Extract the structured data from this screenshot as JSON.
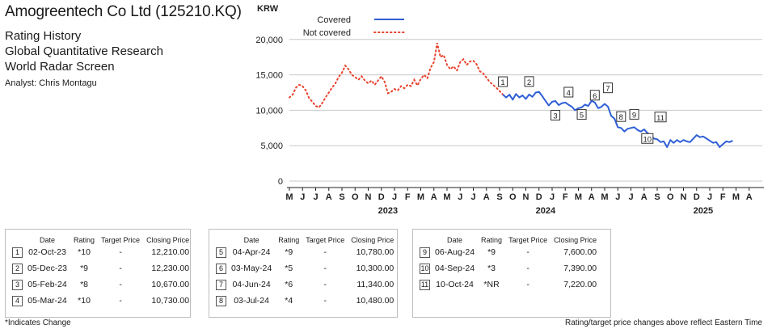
{
  "header": {
    "company": "Amogreentech Co Ltd (125210.KQ)",
    "lines": [
      "Rating History",
      "Global Quantitative Research",
      "World Radar Screen"
    ],
    "analyst": "Analyst: Chris Montagu"
  },
  "chart_data": {
    "type": "line",
    "ylabel": "KRW",
    "ylim": [
      0,
      21000
    ],
    "yticks": [
      0,
      5000,
      10000,
      15000,
      20000
    ],
    "ytick_labels": [
      "0",
      "5,000",
      "10,000",
      "15,000",
      "20,000"
    ],
    "months": [
      "M",
      "J",
      "J",
      "A",
      "S",
      "O",
      "N",
      "D",
      "J",
      "F",
      "M",
      "A",
      "M",
      "J",
      "J",
      "A",
      "S",
      "O",
      "N",
      "D",
      "J",
      "F",
      "M",
      "A",
      "M",
      "J",
      "J",
      "A",
      "S",
      "O",
      "N",
      "D",
      "J",
      "F",
      "M",
      "A"
    ],
    "years": [
      {
        "label": "2023",
        "month_index": 7.5
      },
      {
        "label": "2024",
        "month_index": 19.5
      },
      {
        "label": "2025",
        "month_index": 31.5
      }
    ],
    "grid": "horizontal",
    "legend": {
      "placement": "top-left",
      "covered": "Covered",
      "not_covered": "Not covered",
      "covered_color": "#2f5fd6",
      "not_covered_color": "#e8432e"
    },
    "series": [
      {
        "name": "Not covered",
        "style": "dotted",
        "color": "#e8432e",
        "points": [
          [
            0,
            11800
          ],
          [
            0.25,
            12200
          ],
          [
            0.5,
            13200
          ],
          [
            0.75,
            13600
          ],
          [
            1.0,
            13400
          ],
          [
            1.25,
            12800
          ],
          [
            1.5,
            11700
          ],
          [
            1.75,
            11200
          ],
          [
            2.0,
            10600
          ],
          [
            2.25,
            10400
          ],
          [
            2.5,
            11000
          ],
          [
            2.75,
            11800
          ],
          [
            3.0,
            12500
          ],
          [
            3.25,
            13200
          ],
          [
            3.5,
            13800
          ],
          [
            3.75,
            14700
          ],
          [
            4.0,
            15300
          ],
          [
            4.25,
            16300
          ],
          [
            4.5,
            15800
          ],
          [
            4.75,
            15000
          ],
          [
            5.0,
            14700
          ],
          [
            5.25,
            14300
          ],
          [
            5.5,
            14800
          ],
          [
            5.75,
            14200
          ],
          [
            6.0,
            13800
          ],
          [
            6.25,
            14200
          ],
          [
            6.5,
            13600
          ],
          [
            6.75,
            14200
          ],
          [
            7.0,
            14800
          ],
          [
            7.25,
            14000
          ],
          [
            7.5,
            12400
          ],
          [
            7.75,
            12600
          ],
          [
            8.0,
            13000
          ],
          [
            8.25,
            12800
          ],
          [
            8.5,
            13400
          ],
          [
            8.75,
            13100
          ],
          [
            9.0,
            13600
          ],
          [
            9.25,
            13400
          ],
          [
            9.5,
            14300
          ],
          [
            9.75,
            13500
          ],
          [
            10.0,
            14400
          ],
          [
            10.25,
            15000
          ],
          [
            10.5,
            14500
          ],
          [
            10.75,
            16000
          ],
          [
            11.0,
            16800
          ],
          [
            11.25,
            19500
          ],
          [
            11.5,
            17500
          ],
          [
            11.75,
            17800
          ],
          [
            12.0,
            16400
          ],
          [
            12.25,
            15800
          ],
          [
            12.5,
            16200
          ],
          [
            12.75,
            15600
          ],
          [
            13.0,
            16800
          ],
          [
            13.25,
            17200
          ],
          [
            13.5,
            16400
          ],
          [
            13.75,
            16900
          ],
          [
            14.0,
            17000
          ],
          [
            14.25,
            16500
          ],
          [
            14.5,
            15500
          ],
          [
            14.75,
            15200
          ],
          [
            15.0,
            14600
          ],
          [
            15.25,
            14000
          ],
          [
            15.5,
            13600
          ],
          [
            15.75,
            13200
          ],
          [
            16.0,
            12700
          ],
          [
            16.25,
            12210
          ]
        ]
      },
      {
        "name": "Covered",
        "style": "solid",
        "color": "#2f5fd6",
        "points": [
          [
            16.25,
            12210
          ],
          [
            16.5,
            11800
          ],
          [
            16.75,
            12200
          ],
          [
            17.0,
            11500
          ],
          [
            17.25,
            12300
          ],
          [
            17.5,
            11800
          ],
          [
            17.75,
            12100
          ],
          [
            18.0,
            11600
          ],
          [
            18.25,
            12230
          ],
          [
            18.5,
            11900
          ],
          [
            18.75,
            12500
          ],
          [
            19.0,
            12600
          ],
          [
            19.25,
            12000
          ],
          [
            19.5,
            11300
          ],
          [
            19.75,
            10670
          ],
          [
            20.0,
            11200
          ],
          [
            20.25,
            11300
          ],
          [
            20.5,
            10730
          ],
          [
            20.75,
            11000
          ],
          [
            21.0,
            11100
          ],
          [
            21.25,
            10780
          ],
          [
            21.5,
            10500
          ],
          [
            21.75,
            10000
          ],
          [
            22.0,
            10300
          ],
          [
            22.25,
            10400
          ],
          [
            22.5,
            10800
          ],
          [
            22.75,
            10600
          ],
          [
            23.0,
            11340
          ],
          [
            23.25,
            11100
          ],
          [
            23.5,
            10300
          ],
          [
            23.75,
            10480
          ],
          [
            24.0,
            10900
          ],
          [
            24.25,
            10500
          ],
          [
            24.5,
            9200
          ],
          [
            24.75,
            8800
          ],
          [
            25.0,
            7600
          ],
          [
            25.25,
            7500
          ],
          [
            25.5,
            7000
          ],
          [
            25.75,
            7390
          ],
          [
            26.0,
            7500
          ],
          [
            26.25,
            7600
          ],
          [
            26.5,
            7220
          ],
          [
            26.75,
            7000
          ],
          [
            27.0,
            7300
          ],
          [
            27.25,
            6800
          ],
          [
            27.5,
            6500
          ],
          [
            27.75,
            6000
          ],
          [
            28.0,
            5900
          ],
          [
            28.25,
            5500
          ],
          [
            28.5,
            5600
          ],
          [
            28.75,
            4800
          ],
          [
            29.0,
            5800
          ],
          [
            29.25,
            5400
          ],
          [
            29.5,
            5800
          ],
          [
            29.75,
            5500
          ],
          [
            30.0,
            5800
          ],
          [
            30.25,
            5600
          ],
          [
            30.5,
            5500
          ],
          [
            30.75,
            6000
          ],
          [
            31.0,
            6500
          ],
          [
            31.25,
            6200
          ],
          [
            31.5,
            6300
          ],
          [
            31.75,
            6000
          ],
          [
            32.0,
            5700
          ],
          [
            32.25,
            5400
          ],
          [
            32.5,
            5500
          ],
          [
            32.75,
            4800
          ],
          [
            33.0,
            5200
          ],
          [
            33.25,
            5600
          ],
          [
            33.5,
            5500
          ],
          [
            33.75,
            5700
          ]
        ]
      }
    ],
    "rating_markers": [
      {
        "label": "1",
        "month_index": 16.25,
        "value": 12210,
        "pos": "above"
      },
      {
        "label": "2",
        "month_index": 18.25,
        "value": 12230,
        "pos": "above"
      },
      {
        "label": "3",
        "month_index": 20.25,
        "value": 10670,
        "pos": "below"
      },
      {
        "label": "4",
        "month_index": 21.25,
        "value": 10730,
        "pos": "above"
      },
      {
        "label": "5",
        "month_index": 22.25,
        "value": 10780,
        "pos": "below"
      },
      {
        "label": "6",
        "month_index": 23.25,
        "value": 10300,
        "pos": "above"
      },
      {
        "label": "7",
        "month_index": 24.25,
        "value": 11340,
        "pos": "above"
      },
      {
        "label": "8",
        "month_index": 25.25,
        "value": 10480,
        "pos": "below"
      },
      {
        "label": "9",
        "month_index": 26.25,
        "value": 7600,
        "pos": "above"
      },
      {
        "label": "10",
        "month_index": 27.25,
        "value": 7390,
        "pos": "below"
      },
      {
        "label": "11",
        "month_index": 28.25,
        "value": 7220,
        "pos": "above"
      }
    ]
  },
  "table": {
    "headers": {
      "date": "Date",
      "rating": "Rating",
      "target": "Target Price",
      "close": "Closing Price"
    },
    "panels": [
      [
        {
          "n": "1",
          "date": "02-Oct-23",
          "rating": "*10",
          "target": "-",
          "close": "12,210.00"
        },
        {
          "n": "2",
          "date": "05-Dec-23",
          "rating": "*9",
          "target": "-",
          "close": "12,230.00"
        },
        {
          "n": "3",
          "date": "05-Feb-24",
          "rating": "*8",
          "target": "-",
          "close": "10,670.00"
        },
        {
          "n": "4",
          "date": "05-Mar-24",
          "rating": "*10",
          "target": "-",
          "close": "10,730.00"
        }
      ],
      [
        {
          "n": "5",
          "date": "04-Apr-24",
          "rating": "*9",
          "target": "-",
          "close": "10,780.00"
        },
        {
          "n": "6",
          "date": "03-May-24",
          "rating": "*5",
          "target": "-",
          "close": "10,300.00"
        },
        {
          "n": "7",
          "date": "04-Jun-24",
          "rating": "*6",
          "target": "-",
          "close": "11,340.00"
        },
        {
          "n": "8",
          "date": "03-Jul-24",
          "rating": "*4",
          "target": "-",
          "close": "10,480.00"
        }
      ],
      [
        {
          "n": "9",
          "date": "06-Aug-24",
          "rating": "*9",
          "target": "-",
          "close": "7,600.00"
        },
        {
          "n": "10",
          "date": "04-Sep-24",
          "rating": "*3",
          "target": "-",
          "close": "7,390.00"
        },
        {
          "n": "11",
          "date": "10-Oct-24",
          "rating": "*NR",
          "target": "-",
          "close": "7,220.00"
        }
      ]
    ]
  },
  "footer": {
    "left": "*Indicates Change",
    "right": "Rating/target price changes above reflect Eastern Time"
  }
}
